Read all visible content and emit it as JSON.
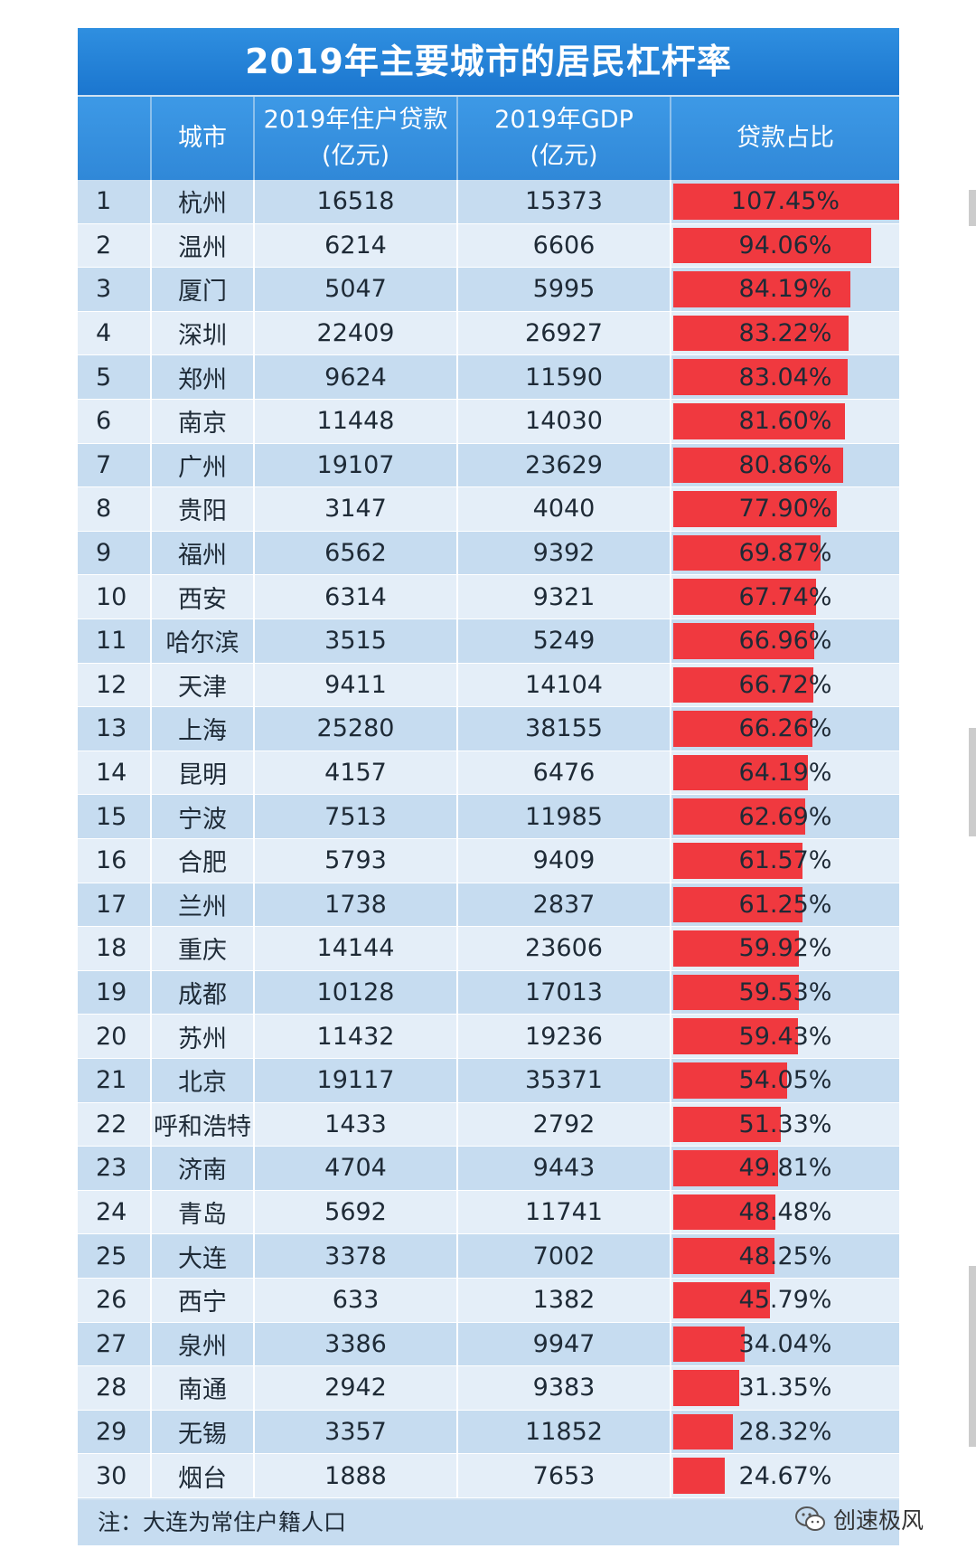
{
  "title": "2019年主要城市的居民杠杆率",
  "columns": {
    "rank": "",
    "city": "城市",
    "loan_line1": "2019年住户贷款",
    "loan_line2": "(亿元)",
    "gdp_line1": "2019年GDP",
    "gdp_line2": "(亿元)",
    "ratio": "贷款占比"
  },
  "footnote": "注：大连为常住户籍人口",
  "watermark": "创速极风",
  "colors": {
    "bar": "#f0393f",
    "title_bg": "#1b76cf",
    "header_bg": "#3088d8"
  },
  "chart_data": {
    "type": "table",
    "title": "2019年主要城市的居民杠杆率",
    "columns": [
      "城市",
      "2019年住户贷款(亿元)",
      "2019年GDP(亿元)",
      "贷款占比"
    ],
    "rows": [
      {
        "rank": "1",
        "city": "杭州",
        "loan": "16518",
        "gdp": "15373",
        "ratio": "107.45%",
        "ratio_value": 107.45
      },
      {
        "rank": "2",
        "city": "温州",
        "loan": "6214",
        "gdp": "6606",
        "ratio": "94.06%",
        "ratio_value": 94.06
      },
      {
        "rank": "3",
        "city": "厦门",
        "loan": "5047",
        "gdp": "5995",
        "ratio": "84.19%",
        "ratio_value": 84.19
      },
      {
        "rank": "4",
        "city": "深圳",
        "loan": "22409",
        "gdp": "26927",
        "ratio": "83.22%",
        "ratio_value": 83.22
      },
      {
        "rank": "5",
        "city": "郑州",
        "loan": "9624",
        "gdp": "11590",
        "ratio": "83.04%",
        "ratio_value": 83.04
      },
      {
        "rank": "6",
        "city": "南京",
        "loan": "11448",
        "gdp": "14030",
        "ratio": "81.60%",
        "ratio_value": 81.6
      },
      {
        "rank": "7",
        "city": "广州",
        "loan": "19107",
        "gdp": "23629",
        "ratio": "80.86%",
        "ratio_value": 80.86
      },
      {
        "rank": "8",
        "city": "贵阳",
        "loan": "3147",
        "gdp": "4040",
        "ratio": "77.90%",
        "ratio_value": 77.9
      },
      {
        "rank": "9",
        "city": "福州",
        "loan": "6562",
        "gdp": "9392",
        "ratio": "69.87%",
        "ratio_value": 69.87
      },
      {
        "rank": "10",
        "city": "西安",
        "loan": "6314",
        "gdp": "9321",
        "ratio": "67.74%",
        "ratio_value": 67.74
      },
      {
        "rank": "11",
        "city": "哈尔滨",
        "loan": "3515",
        "gdp": "5249",
        "ratio": "66.96%",
        "ratio_value": 66.96
      },
      {
        "rank": "12",
        "city": "天津",
        "loan": "9411",
        "gdp": "14104",
        "ratio": "66.72%",
        "ratio_value": 66.72
      },
      {
        "rank": "13",
        "city": "上海",
        "loan": "25280",
        "gdp": "38155",
        "ratio": "66.26%",
        "ratio_value": 66.26
      },
      {
        "rank": "14",
        "city": "昆明",
        "loan": "4157",
        "gdp": "6476",
        "ratio": "64.19%",
        "ratio_value": 64.19
      },
      {
        "rank": "15",
        "city": "宁波",
        "loan": "7513",
        "gdp": "11985",
        "ratio": "62.69%",
        "ratio_value": 62.69
      },
      {
        "rank": "16",
        "city": "合肥",
        "loan": "5793",
        "gdp": "9409",
        "ratio": "61.57%",
        "ratio_value": 61.57
      },
      {
        "rank": "17",
        "city": "兰州",
        "loan": "1738",
        "gdp": "2837",
        "ratio": "61.25%",
        "ratio_value": 61.25
      },
      {
        "rank": "18",
        "city": "重庆",
        "loan": "14144",
        "gdp": "23606",
        "ratio": "59.92%",
        "ratio_value": 59.92
      },
      {
        "rank": "19",
        "city": "成都",
        "loan": "10128",
        "gdp": "17013",
        "ratio": "59.53%",
        "ratio_value": 59.53
      },
      {
        "rank": "20",
        "city": "苏州",
        "loan": "11432",
        "gdp": "19236",
        "ratio": "59.43%",
        "ratio_value": 59.43
      },
      {
        "rank": "21",
        "city": "北京",
        "loan": "19117",
        "gdp": "35371",
        "ratio": "54.05%",
        "ratio_value": 54.05
      },
      {
        "rank": "22",
        "city": "呼和浩特",
        "loan": "1433",
        "gdp": "2792",
        "ratio": "51.33%",
        "ratio_value": 51.33
      },
      {
        "rank": "23",
        "city": "济南",
        "loan": "4704",
        "gdp": "9443",
        "ratio": "49.81%",
        "ratio_value": 49.81
      },
      {
        "rank": "24",
        "city": "青岛",
        "loan": "5692",
        "gdp": "11741",
        "ratio": "48.48%",
        "ratio_value": 48.48
      },
      {
        "rank": "25",
        "city": "大连",
        "loan": "3378",
        "gdp": "7002",
        "ratio": "48.25%",
        "ratio_value": 48.25
      },
      {
        "rank": "26",
        "city": "西宁",
        "loan": "633",
        "gdp": "1382",
        "ratio": "45.79%",
        "ratio_value": 45.79
      },
      {
        "rank": "27",
        "city": "泉州",
        "loan": "3386",
        "gdp": "9947",
        "ratio": "34.04%",
        "ratio_value": 34.04
      },
      {
        "rank": "28",
        "city": "南通",
        "loan": "2942",
        "gdp": "9383",
        "ratio": "31.35%",
        "ratio_value": 31.35
      },
      {
        "rank": "29",
        "city": "无锡",
        "loan": "3357",
        "gdp": "11852",
        "ratio": "28.32%",
        "ratio_value": 28.32
      },
      {
        "rank": "30",
        "city": "烟台",
        "loan": "1888",
        "gdp": "7653",
        "ratio": "24.67%",
        "ratio_value": 24.67
      }
    ]
  }
}
